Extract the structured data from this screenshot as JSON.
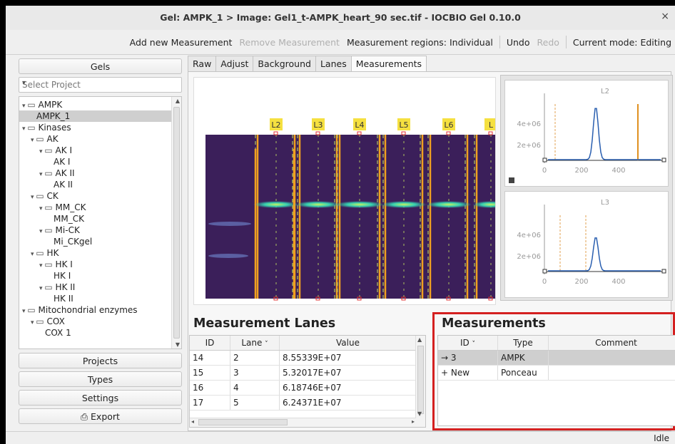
{
  "window": {
    "title": "Gel: AMPK_1 > Image: Gel1_t-AMPK_heart_90 sec.tif - IOCBIO Gel 0.10.0",
    "close": "×"
  },
  "toolbar": {
    "add_measurement": "Add new Measurement",
    "remove_measurement": "Remove Measurement",
    "regions": "Measurement regions: Individual",
    "undo": "Undo",
    "redo": "Redo",
    "mode": "Current mode: Editing"
  },
  "sidebar": {
    "gels_button": "Gels",
    "select_project_placeholder": "Select Project",
    "tree": [
      {
        "label": "AMPK",
        "level": 0,
        "folder": true
      },
      {
        "label": "AMPK_1",
        "level": 1,
        "folder": false,
        "selected": true
      },
      {
        "label": "Kinases",
        "level": 0,
        "folder": true
      },
      {
        "label": "AK",
        "level": 1,
        "folder": true
      },
      {
        "label": "AK I",
        "level": 2,
        "folder": true
      },
      {
        "label": "AK I",
        "level": 3,
        "folder": false
      },
      {
        "label": "AK II",
        "level": 2,
        "folder": true
      },
      {
        "label": "AK II",
        "level": 3,
        "folder": false
      },
      {
        "label": "CK",
        "level": 1,
        "folder": true
      },
      {
        "label": "MM_CK",
        "level": 2,
        "folder": true
      },
      {
        "label": "MM_CK",
        "level": 3,
        "folder": false
      },
      {
        "label": "Mi-CK",
        "level": 2,
        "folder": true
      },
      {
        "label": "Mi_CKgel",
        "level": 3,
        "folder": false
      },
      {
        "label": "HK",
        "level": 1,
        "folder": true
      },
      {
        "label": "HK I",
        "level": 2,
        "folder": true
      },
      {
        "label": "HK I",
        "level": 3,
        "folder": false
      },
      {
        "label": "HK II",
        "level": 2,
        "folder": true
      },
      {
        "label": "HK II",
        "level": 3,
        "folder": false
      },
      {
        "label": "Mitochondrial enzymes",
        "level": 0,
        "folder": true
      },
      {
        "label": "COX",
        "level": 1,
        "folder": true
      },
      {
        "label": "COX 1",
        "level": 2,
        "folder": false
      }
    ],
    "projects_button": "Projects",
    "types_button": "Types",
    "settings_button": "Settings",
    "export_button": "Export"
  },
  "tabs": [
    "Raw",
    "Adjust",
    "Background",
    "Lanes",
    "Measurements"
  ],
  "active_tab": "Measurements",
  "gel": {
    "lane_labels": [
      "L2",
      "L3",
      "L4",
      "L5",
      "L6",
      "L"
    ],
    "colors": {
      "background": "#3b1f5a",
      "band": "#35d0b0",
      "boundary": "#f0a020",
      "dash": "#c8e860",
      "label_bg": "#f5e040"
    }
  },
  "plots": [
    {
      "title": "L2",
      "yticks": [
        "4e+06",
        "2e+06"
      ],
      "xticks": [
        "0",
        "200",
        "400"
      ],
      "peak_level": 0.85
    },
    {
      "title": "L3",
      "yticks": [
        "4e+06",
        "2e+06"
      ],
      "xticks": [
        "0",
        "200",
        "400"
      ],
      "peak_level": 0.55
    }
  ],
  "lanes_table": {
    "heading": "Measurement Lanes",
    "headers": [
      "ID",
      "Lane",
      "Value"
    ],
    "rows": [
      [
        "14",
        "2",
        "8.55339E+07"
      ],
      [
        "15",
        "3",
        "5.32017E+07"
      ],
      [
        "16",
        "4",
        "6.18746E+07"
      ],
      [
        "17",
        "5",
        "6.24371E+07"
      ]
    ]
  },
  "measurements_table": {
    "heading": "Measurements",
    "headers": [
      "ID",
      "Type",
      "Comment"
    ],
    "rows": [
      {
        "id": "→ 3",
        "type": "AMPK",
        "comment": ""
      },
      {
        "id": "+ New",
        "type": "Ponceau",
        "comment": ""
      }
    ],
    "highlight_color": "#d42020"
  },
  "status": "Idle"
}
